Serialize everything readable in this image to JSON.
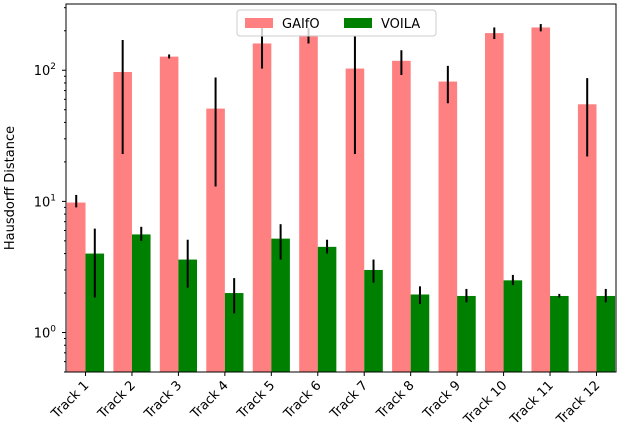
{
  "chart_data": {
    "type": "bar",
    "title": "",
    "xlabel": "",
    "ylabel": "Hausdorff Distance",
    "yscale": "log",
    "ylim": [
      0.5,
      320
    ],
    "yticks": [
      {
        "value": 1,
        "base": "10",
        "exp": "0"
      },
      {
        "value": 10,
        "base": "10",
        "exp": "1"
      },
      {
        "value": 100,
        "base": "10",
        "exp": "2"
      }
    ],
    "categories": [
      "Track 1",
      "Track 2",
      "Track 3",
      "Track 4",
      "Track 5",
      "Track 6",
      "Track 7",
      "Track 8",
      "Track 9",
      "Track 10",
      "Track 11",
      "Track 12"
    ],
    "legend_position": "top-center",
    "series": [
      {
        "name": "GAIfO",
        "color": "#ff8080",
        "values": [
          9.8,
          97,
          127,
          51,
          160,
          185,
          103,
          118,
          82,
          192,
          212,
          55
        ],
        "err_low": [
          9.0,
          23,
          123,
          13,
          103,
          160,
          23,
          92,
          56,
          173,
          198,
          22
        ],
        "err_high": [
          11.2,
          170,
          132,
          88,
          230,
          210,
          183,
          142,
          108,
          212,
          225,
          87
        ]
      },
      {
        "name": "VOILA",
        "color": "#008000",
        "values": [
          4.0,
          5.6,
          3.6,
          2.0,
          5.2,
          4.5,
          3.0,
          1.95,
          1.9,
          2.5,
          1.9,
          1.9
        ],
        "err_low": [
          1.85,
          5.0,
          2.2,
          1.4,
          3.6,
          4.0,
          2.4,
          1.65,
          1.7,
          2.3,
          1.85,
          1.7
        ],
        "err_high": [
          6.2,
          6.4,
          5.1,
          2.6,
          6.7,
          5.1,
          3.6,
          2.25,
          2.15,
          2.75,
          1.97,
          2.15
        ]
      }
    ]
  }
}
